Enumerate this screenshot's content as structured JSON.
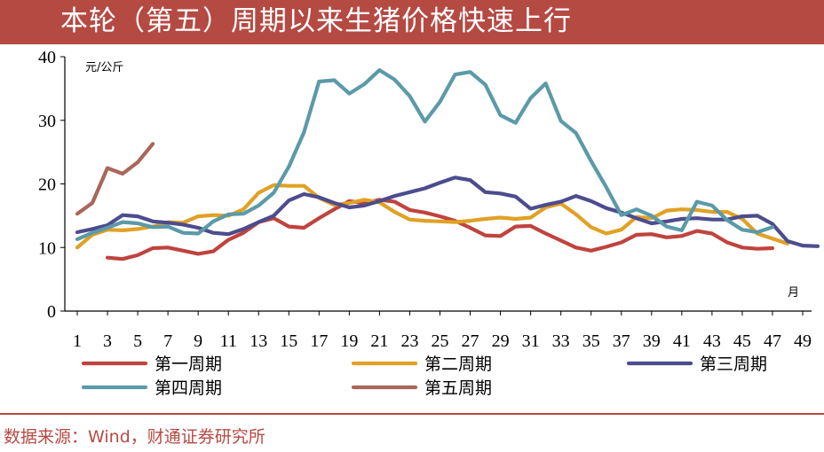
{
  "title": "本轮（第五）周期以来生猪价格快速上行",
  "source": "数据来源：Wind，财通证券研究所",
  "colors": {
    "header": "#b54a43"
  },
  "chart_data": {
    "type": "line",
    "unit_label": "元/公斤",
    "x_unit_label": "月",
    "ylim": [
      0,
      40
    ],
    "yticks": [
      0,
      10,
      20,
      30,
      40
    ],
    "xlim": [
      1,
      49
    ],
    "xticks": [
      1,
      3,
      5,
      7,
      9,
      11,
      13,
      15,
      17,
      19,
      21,
      23,
      25,
      27,
      29,
      31,
      33,
      35,
      37,
      39,
      41,
      43,
      45,
      47,
      49
    ],
    "grid": false,
    "legend_position": "bottom",
    "series": [
      {
        "name": "第一周期",
        "color": "#c0433e",
        "start": 3,
        "values": [
          8.4,
          8.2,
          8.8,
          9.9,
          10.0,
          9.5,
          9.0,
          9.4,
          11.2,
          12.3,
          14.0,
          14.6,
          13.3,
          13.1,
          14.6,
          16.0,
          17.3,
          17.0,
          17.5,
          17.2,
          15.9,
          15.5,
          14.9,
          14.2,
          13.1,
          11.9,
          11.8,
          13.3,
          13.4,
          12.2,
          11.1,
          10.0,
          9.5,
          10.1,
          10.8,
          12.0,
          12.1,
          11.6,
          11.8,
          12.6,
          12.2,
          10.8,
          10.0,
          9.8,
          9.9
        ]
      },
      {
        "name": "第二周期",
        "color": "#e0a125",
        "start": 1,
        "values": [
          10.0,
          12.0,
          12.8,
          12.7,
          12.9,
          13.3,
          14.0,
          13.9,
          14.9,
          15.1,
          15.0,
          16.0,
          18.6,
          19.8,
          19.7,
          19.7,
          17.8,
          16.7,
          17.0,
          17.5,
          17.1,
          15.6,
          14.4,
          14.2,
          14.1,
          14.0,
          14.2,
          14.5,
          14.7,
          14.5,
          14.7,
          16.3,
          16.9,
          15.2,
          13.2,
          12.2,
          12.8,
          14.8,
          14.6,
          15.8,
          16.0,
          15.9,
          15.6,
          15.6,
          14.5,
          12.2,
          11.4,
          10.6
        ]
      },
      {
        "name": "第三周期",
        "color": "#4c4c8e",
        "start": 1,
        "values": [
          12.4,
          12.9,
          13.5,
          15.1,
          14.9,
          14.1,
          13.9,
          13.6,
          13.1,
          12.3,
          12.1,
          12.9,
          14.0,
          15.0,
          17.4,
          18.4,
          17.9,
          17.0,
          16.3,
          16.6,
          17.3,
          18.1,
          18.7,
          19.3,
          20.2,
          21.0,
          20.6,
          18.7,
          18.5,
          18.0,
          16.1,
          16.7,
          17.2,
          18.1,
          17.3,
          16.2,
          15.5,
          14.6,
          13.8,
          14.1,
          14.5,
          14.6,
          14.4,
          14.4,
          14.9,
          15.0,
          13.7,
          11.0,
          10.3,
          10.2
        ]
      },
      {
        "name": "第四周期",
        "color": "#5b9aa8",
        "start": 1,
        "values": [
          11.3,
          12.3,
          13.1,
          14.0,
          13.8,
          13.2,
          13.3,
          12.3,
          12.2,
          14.1,
          15.2,
          15.3,
          16.6,
          18.6,
          22.7,
          28.1,
          36.1,
          36.3,
          34.2,
          35.7,
          37.9,
          36.4,
          33.8,
          29.8,
          32.9,
          37.2,
          37.6,
          35.6,
          30.8,
          29.6,
          33.5,
          35.8,
          29.9,
          28.0,
          23.6,
          19.5,
          15.1,
          16.0,
          15.0,
          13.3,
          12.7,
          17.2,
          16.6,
          14.3,
          12.8,
          12.4,
          13.2
        ]
      },
      {
        "name": "第五周期",
        "color": "#a9665a",
        "start": 1,
        "values": [
          15.3,
          17.0,
          22.5,
          21.6,
          23.4,
          26.3
        ]
      }
    ]
  }
}
